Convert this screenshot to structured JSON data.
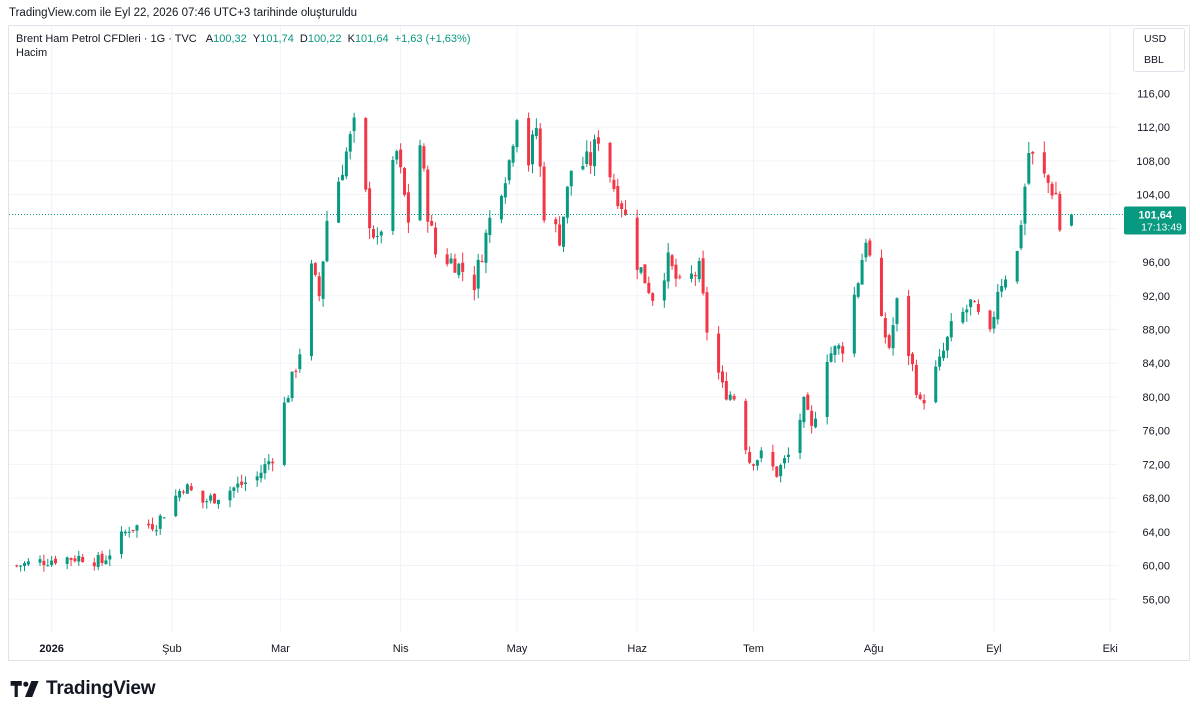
{
  "caption": "TradingView.com ile Eyl 22, 2026 07:46 UTC+3 tarihinde oluşturuldu",
  "legend": {
    "symbol": "Brent Ham Petrol CFDleri · 1G · TVC",
    "open_label": "A",
    "open_value": "100,32",
    "high_label": "Y",
    "high_value": "101,74",
    "low_label": "D",
    "low_value": "100,22",
    "close_label": "K",
    "close_value": "101,64",
    "change": "+1,63 (+1,63%)",
    "volume_label": "Hacim"
  },
  "currency_unit": {
    "currency": "USD",
    "unit": "BBL"
  },
  "last_price": {
    "value": "101,64",
    "countdown": "17:13:49"
  },
  "colors": {
    "up": "#089981",
    "down": "#f23645",
    "grid": "#f0f3fa",
    "text": "#131722"
  },
  "logo": {
    "text": "TradingView",
    "icon": "tradingview-logo-icon"
  },
  "chart_data": {
    "type": "candlestick",
    "title": "Brent Ham Petrol CFDleri · 1G · TVC",
    "ylim": [
      52,
      124
    ],
    "y_ticks": [
      56,
      60,
      64,
      68,
      72,
      76,
      80,
      84,
      88,
      92,
      96,
      100,
      104,
      108,
      112,
      116
    ],
    "y_tick_labels": [
      "56,00",
      "60,00",
      "64,00",
      "68,00",
      "72,00",
      "76,00",
      "80,00",
      "84,00",
      "88,00",
      "92,00",
      "96,00",
      "100,00",
      "104,00",
      "108,00",
      "112,00",
      "116,00"
    ],
    "x_ticks": [
      {
        "label": "2026",
        "date": "2026-01-01"
      },
      {
        "label": "Şub",
        "date": "2026-02-01"
      },
      {
        "label": "Mar",
        "date": "2026-03-01"
      },
      {
        "label": "Nis",
        "date": "2026-04-01"
      },
      {
        "label": "May",
        "date": "2026-05-01"
      },
      {
        "label": "Haz",
        "date": "2026-06-01"
      },
      {
        "label": "Tem",
        "date": "2026-07-01"
      },
      {
        "label": "Ağu",
        "date": "2026-08-01"
      },
      {
        "label": "Eyl",
        "date": "2026-09-01"
      },
      {
        "label": "Eki",
        "date": "2026-10-01"
      }
    ],
    "last_value": 101.64,
    "anchors": [
      {
        "date": "2025-12-23",
        "close": 60.0
      },
      {
        "date": "2026-01-02",
        "close": 60.8
      },
      {
        "date": "2026-01-09",
        "close": 61.0
      },
      {
        "date": "2026-01-14",
        "close": 60.4
      },
      {
        "date": "2026-01-21",
        "close": 64.5
      },
      {
        "date": "2026-01-28",
        "close": 65.0
      },
      {
        "date": "2026-02-04",
        "close": 69.5
      },
      {
        "date": "2026-02-09",
        "close": 67.5
      },
      {
        "date": "2026-02-16",
        "close": 69.0
      },
      {
        "date": "2026-02-23",
        "close": 70.5
      },
      {
        "date": "2026-02-27",
        "close": 73.0
      },
      {
        "date": "2026-03-02",
        "close": 79.0
      },
      {
        "date": "2026-03-04",
        "close": 82.0
      },
      {
        "date": "2026-03-06",
        "close": 85.5
      },
      {
        "date": "2026-03-09",
        "close": 95.0
      },
      {
        "date": "2026-03-11",
        "close": 92.0
      },
      {
        "date": "2026-03-13",
        "close": 101.0
      },
      {
        "date": "2026-03-18",
        "close": 109.0
      },
      {
        "date": "2026-03-20",
        "close": 112.0
      },
      {
        "date": "2026-03-24",
        "close": 101.0
      },
      {
        "date": "2026-03-26",
        "close": 98.0
      },
      {
        "date": "2026-03-31",
        "close": 109.0
      },
      {
        "date": "2026-04-03",
        "close": 101.0
      },
      {
        "date": "2026-04-06",
        "close": 110.0
      },
      {
        "date": "2026-04-08",
        "close": 102.0
      },
      {
        "date": "2026-04-10",
        "close": 97.0
      },
      {
        "date": "2026-04-15",
        "close": 96.0
      },
      {
        "date": "2026-04-20",
        "close": 93.5
      },
      {
        "date": "2026-04-24",
        "close": 101.0
      },
      {
        "date": "2026-04-29",
        "close": 108.0
      },
      {
        "date": "2026-05-01",
        "close": 114.0
      },
      {
        "date": "2026-05-04",
        "close": 108.0
      },
      {
        "date": "2026-05-06",
        "close": 112.0
      },
      {
        "date": "2026-05-08",
        "close": 102.0
      },
      {
        "date": "2026-05-12",
        "close": 99.0
      },
      {
        "date": "2026-05-15",
        "close": 107.0
      },
      {
        "date": "2026-05-20",
        "close": 108.0
      },
      {
        "date": "2026-05-22",
        "close": 111.0
      },
      {
        "date": "2026-05-26",
        "close": 105.0
      },
      {
        "date": "2026-05-28",
        "close": 103.0
      },
      {
        "date": "2026-06-01",
        "close": 96.0
      },
      {
        "date": "2026-06-05",
        "close": 92.0
      },
      {
        "date": "2026-06-09",
        "close": 96.0
      },
      {
        "date": "2026-06-12",
        "close": 93.0
      },
      {
        "date": "2026-06-17",
        "close": 95.0
      },
      {
        "date": "2026-06-19",
        "close": 88.0
      },
      {
        "date": "2026-06-23",
        "close": 81.0
      },
      {
        "date": "2026-06-26",
        "close": 80.0
      },
      {
        "date": "2026-06-30",
        "close": 72.5
      },
      {
        "date": "2026-07-03",
        "close": 73.0
      },
      {
        "date": "2026-07-07",
        "close": 71.0
      },
      {
        "date": "2026-07-10",
        "close": 73.0
      },
      {
        "date": "2026-07-14",
        "close": 79.0
      },
      {
        "date": "2026-07-16",
        "close": 76.0
      },
      {
        "date": "2026-07-20",
        "close": 85.0
      },
      {
        "date": "2026-07-24",
        "close": 86.0
      },
      {
        "date": "2026-07-28",
        "close": 94.0
      },
      {
        "date": "2026-07-30",
        "close": 99.0
      },
      {
        "date": "2026-08-03",
        "close": 88.5
      },
      {
        "date": "2026-08-05",
        "close": 86.0
      },
      {
        "date": "2026-08-07",
        "close": 91.0
      },
      {
        "date": "2026-08-11",
        "close": 83.5
      },
      {
        "date": "2026-08-13",
        "close": 79.0
      },
      {
        "date": "2026-08-18",
        "close": 84.0
      },
      {
        "date": "2026-08-21",
        "close": 88.0
      },
      {
        "date": "2026-08-26",
        "close": 91.0
      },
      {
        "date": "2026-08-31",
        "close": 87.0
      },
      {
        "date": "2026-09-02",
        "close": 93.0
      },
      {
        "date": "2026-09-07",
        "close": 97.0
      },
      {
        "date": "2026-09-10",
        "close": 109.0
      },
      {
        "date": "2026-09-14",
        "close": 106.0
      },
      {
        "date": "2026-09-17",
        "close": 104.0
      },
      {
        "date": "2026-09-18",
        "close": 100.0
      },
      {
        "date": "2026-09-21",
        "close": 101.64
      }
    ]
  }
}
